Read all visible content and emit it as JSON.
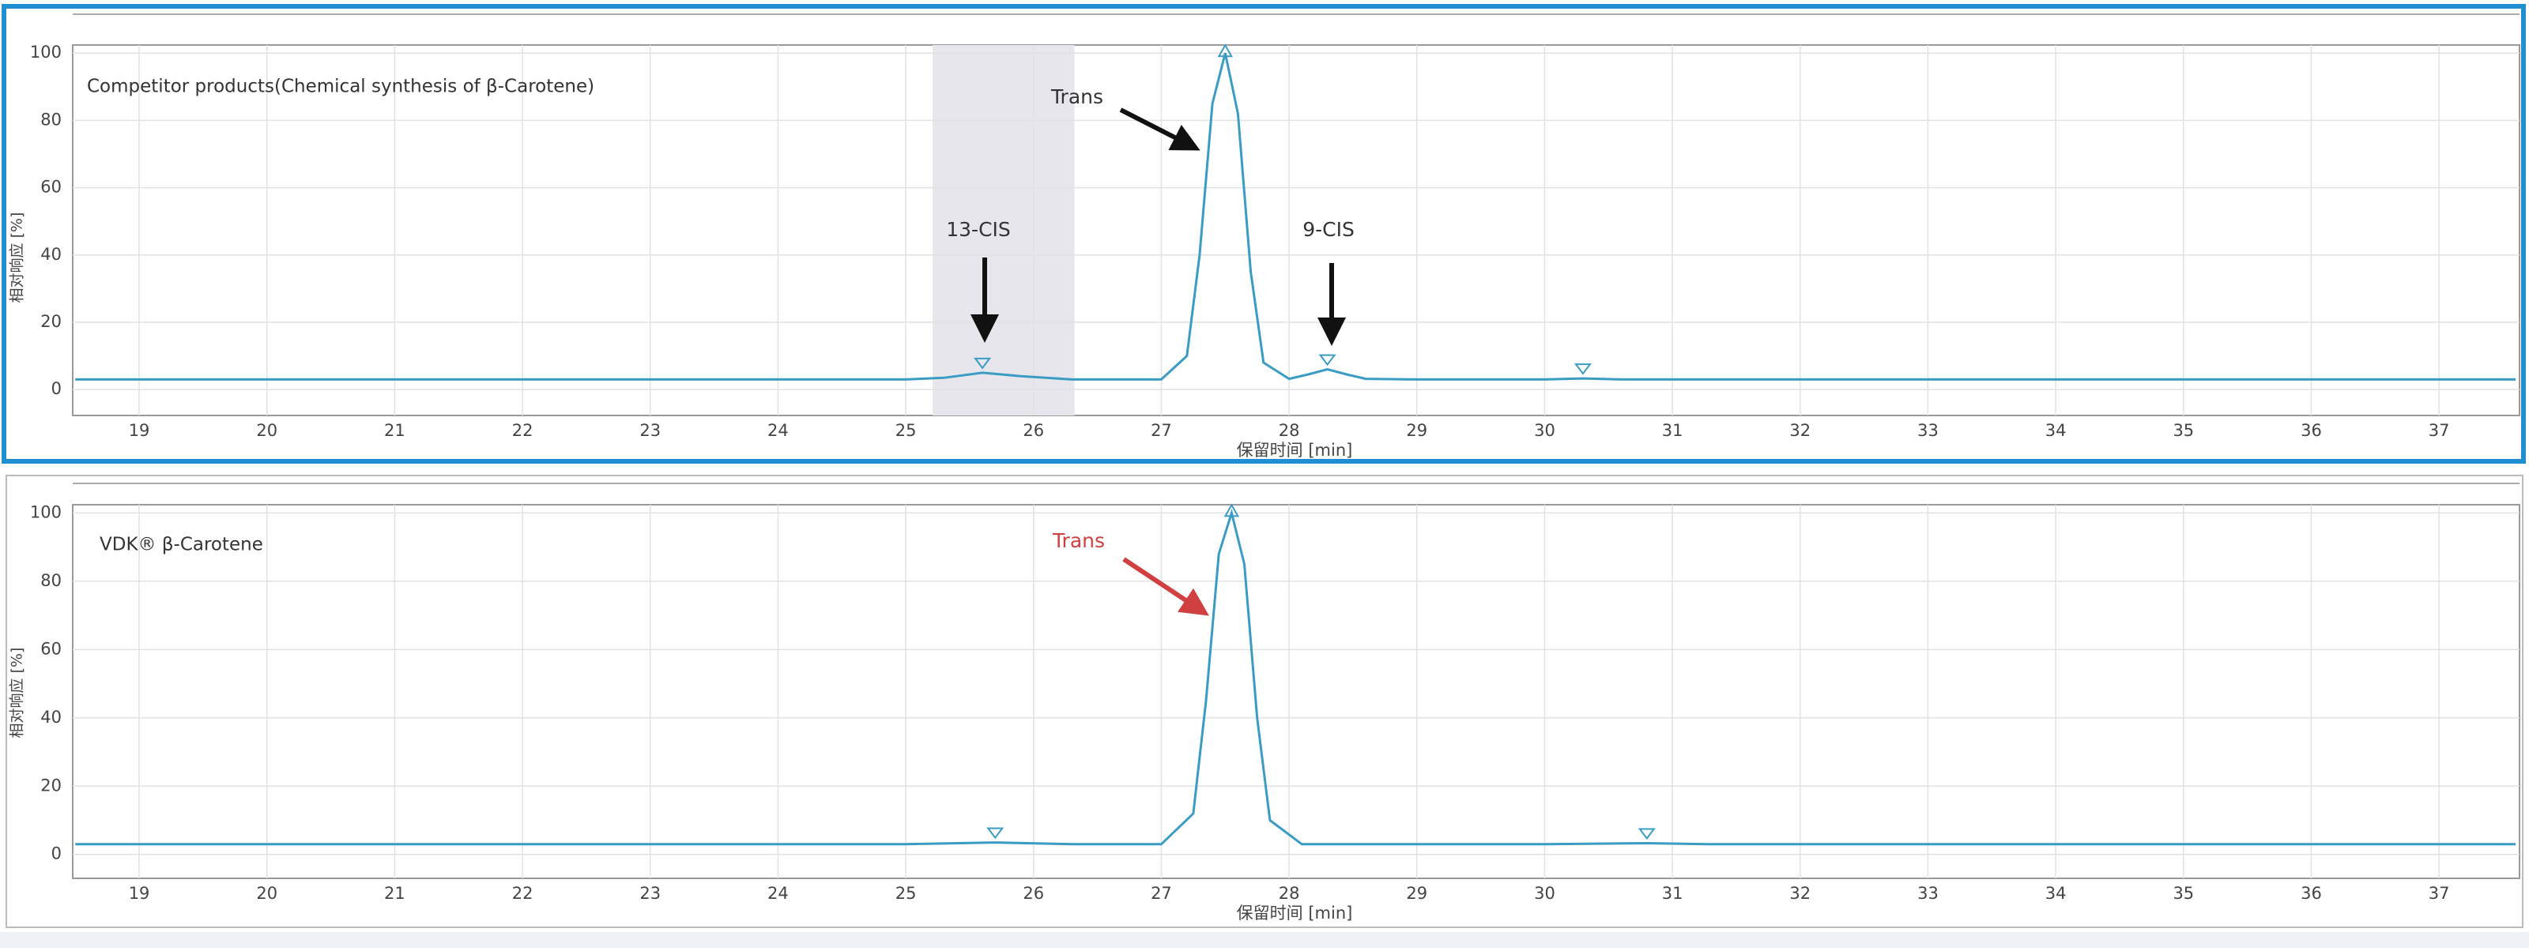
{
  "chart_data": [
    {
      "type": "line",
      "title": "Competitor products(Chemical synthesis of β-Carotene)",
      "x_label": "保留时间 [min]",
      "y_label": "相对响应 [%]",
      "x": [
        18.5,
        20,
        22,
        24,
        25.0,
        25.3,
        25.6,
        25.9,
        26.3,
        27.0,
        27.2,
        27.3,
        27.4,
        27.5,
        27.6,
        27.7,
        27.8,
        28.0,
        28.15,
        28.3,
        28.45,
        28.6,
        29,
        30,
        30.3,
        30.6,
        32,
        34,
        35,
        37.6
      ],
      "series": [
        {
          "color": "#3a9cc4",
          "values": [
            3,
            3,
            3,
            3,
            3,
            3.5,
            5,
            4,
            3,
            3,
            10,
            40,
            85,
            100,
            82,
            35,
            8,
            3.2,
            4.5,
            6,
            4.5,
            3.2,
            3,
            3,
            3.3,
            3,
            3,
            3,
            3,
            3
          ]
        }
      ],
      "xlim": [
        18.48,
        37.63
      ],
      "ylim": [
        -7.7,
        102.4
      ],
      "xticks": [
        19,
        20,
        21,
        22,
        23,
        24,
        25,
        26,
        27,
        28,
        29,
        30,
        31,
        32,
        33,
        34,
        35,
        36,
        37
      ],
      "yticks": [
        0,
        20,
        40,
        60,
        80,
        100
      ],
      "grid": true,
      "highlight": [
        25.21,
        26.32
      ],
      "annotations": [
        {
          "text": "Trans",
          "color": "#333333"
        },
        {
          "text": "13-CIS",
          "color": "#333333"
        },
        {
          "text": "9-CIS",
          "color": "#333333"
        }
      ]
    },
    {
      "type": "line",
      "title": "VDK® β-Carotene",
      "x_label": "保留时间 [min]",
      "y_label": "相对响应 [%]",
      "x": [
        18.5,
        20,
        22,
        24,
        25.0,
        25.7,
        26.3,
        27.0,
        27.25,
        27.35,
        27.45,
        27.55,
        27.65,
        27.75,
        27.85,
        28.1,
        29,
        30,
        30.8,
        31.3,
        33,
        35,
        37.6
      ],
      "series": [
        {
          "color": "#3a9cc4",
          "values": [
            3,
            3,
            3,
            3,
            3,
            3.5,
            3,
            3,
            12,
            45,
            88,
            100,
            85,
            40,
            10,
            3,
            3,
            3,
            3.3,
            3,
            3,
            3,
            3
          ]
        }
      ],
      "xlim": [
        18.48,
        37.63
      ],
      "ylim": [
        -7,
        102.4
      ],
      "xticks": [
        19,
        20,
        21,
        22,
        23,
        24,
        25,
        26,
        27,
        28,
        29,
        30,
        31,
        32,
        33,
        34,
        35,
        36,
        37
      ],
      "yticks": [
        0,
        20,
        40,
        60,
        80,
        100
      ],
      "grid": true,
      "annotations": [
        {
          "text": "Trans",
          "color": "#d04040"
        }
      ]
    }
  ]
}
